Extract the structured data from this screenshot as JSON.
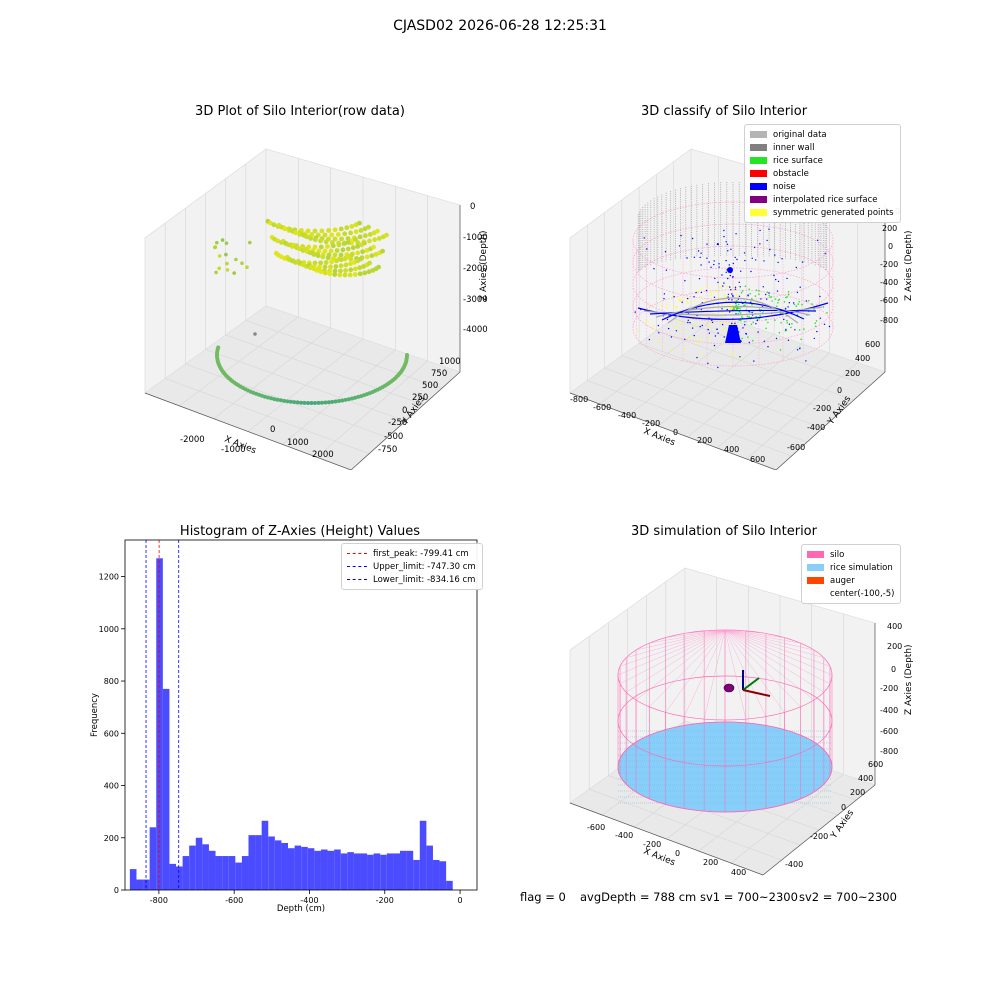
{
  "figure_title": "CJASD02 2026-06-28 12:25:31",
  "colors": {
    "raw_low": "#2a9d8f",
    "raw_high": "#e4e71a",
    "original_data": "#b4b4b4",
    "inner_wall": "#808080",
    "rice_surface": "#22e622",
    "obstacle": "#ff0000",
    "noise": "#0000ff",
    "interpolated_rice_surface": "#800080",
    "symmetric_generated_points": "#ffff33",
    "silo": "#ff69b4",
    "rice_simulation": "#87cefa",
    "auger": "#ff4500",
    "histogram_bar": "#4b4bff",
    "first_peak_line": "#ff0000",
    "limit_lines": "#0000ff"
  },
  "panels": {
    "raw": {
      "title": "3D Plot of Silo Interior(row data)",
      "xlabel": "X Axies",
      "ylabel": "Y Axies",
      "zlabel": "Z Axies (Depth)",
      "xticks": [
        "-2000",
        "-1000",
        "0",
        "1000",
        "2000"
      ],
      "yticks": [
        "-750",
        "-500",
        "-250",
        "0",
        "250",
        "500",
        "750",
        "1000"
      ],
      "zticks": [
        "0",
        "-1000",
        "-2000",
        "-3000",
        "-4000"
      ]
    },
    "classify": {
      "title": "3D classify of Silo Interior",
      "xlabel": "X Axies",
      "ylabel": "Y Axies",
      "zlabel": "Z Axies (Depth)",
      "xticks": [
        "-800",
        "-600",
        "-400",
        "-200",
        "0",
        "200",
        "400",
        "600"
      ],
      "yticks": [
        "-600",
        "-400",
        "-200",
        "0",
        "200",
        "400",
        "600"
      ],
      "zticks": [
        "200",
        "0",
        "-200",
        "-400",
        "-600",
        "-800"
      ],
      "zticks_top_partial": "0",
      "legend": [
        {
          "label": "original data",
          "color": "#b4b4b4"
        },
        {
          "label": "inner wall",
          "color": "#808080"
        },
        {
          "label": "rice surface",
          "color": "#22e622"
        },
        {
          "label": "obstacle",
          "color": "#ff0000"
        },
        {
          "label": "noise",
          "color": "#0000ff"
        },
        {
          "label": "interpolated rice surface",
          "color": "#800080"
        },
        {
          "label": "symmetric generated points",
          "color": "#ffff33"
        }
      ]
    },
    "simulation": {
      "title": "3D simulation of Silo Interior",
      "xlabel": "X Axies",
      "ylabel": "Y Axies",
      "zlabel": "Z Axies (Depth)",
      "xticks": [
        "-600",
        "-400",
        "-200",
        "0",
        "200",
        "400"
      ],
      "yticks": [
        "-400",
        "-200",
        "0",
        "200",
        "400",
        "600"
      ],
      "zticks": [
        "400",
        "200",
        "0",
        "-200",
        "-400",
        "-600",
        "-800"
      ],
      "legend": [
        {
          "label": "silo",
          "color": "#ff69b4"
        },
        {
          "label": "rice simulation",
          "color": "#87cefa"
        },
        {
          "label": "auger",
          "color": "#ff4500"
        },
        {
          "label": "center(-100,-5)",
          "color": ""
        }
      ]
    }
  },
  "footer": {
    "flag": "flag = 0",
    "avg_depth": "avgDepth = 788 cm",
    "sv1": "sv1 = 700~2300",
    "sv2": "sv2 = 700~2300"
  },
  "chart_data": [
    {
      "type": "scatter",
      "title": "3D Plot of Silo Interior(row data)",
      "xlabel": "X Axies",
      "ylabel": "Y Axies",
      "zlabel": "Z Axies (Depth)",
      "xlim": [
        -2600,
        2600
      ],
      "ylim": [
        -900,
        1100
      ],
      "zlim": [
        -4400,
        300
      ]
    },
    {
      "type": "scatter",
      "title": "3D classify of Silo Interior",
      "xlabel": "X Axies",
      "ylabel": "Y Axies",
      "zlabel": "Z Axies (Depth)",
      "series": [
        {
          "name": "original data"
        },
        {
          "name": "inner wall"
        },
        {
          "name": "rice surface"
        },
        {
          "name": "obstacle"
        },
        {
          "name": "noise"
        },
        {
          "name": "interpolated rice surface"
        },
        {
          "name": "symmetric generated points"
        }
      ]
    },
    {
      "type": "bar",
      "title": "Histogram of Z-Axies (Height) Values",
      "xlabel": "Depth (cm)",
      "ylabel": "Frequency",
      "xlim": [
        -890,
        45
      ],
      "ylim": [
        0,
        1340
      ],
      "xticks": [
        -800,
        -600,
        -400,
        -200,
        0
      ],
      "yticks": [
        0,
        200,
        400,
        600,
        800,
        1000,
        1200
      ],
      "bin_start": -877,
      "bin_width": 17.5,
      "values": [
        80,
        40,
        40,
        240,
        1270,
        770,
        100,
        90,
        130,
        170,
        200,
        175,
        150,
        130,
        130,
        130,
        105,
        130,
        210,
        210,
        265,
        205,
        190,
        180,
        160,
        170,
        165,
        160,
        150,
        155,
        150,
        155,
        140,
        145,
        140,
        140,
        135,
        140,
        135,
        140,
        140,
        150,
        150,
        115,
        265,
        170,
        115,
        110,
        35
      ],
      "vlines": [
        {
          "label": "first_peak: -799.41 cm",
          "x": -799.41,
          "color": "#ff0000"
        },
        {
          "label": "Upper_limit: -747.30 cm",
          "x": -747.3,
          "color": "#0000ff"
        },
        {
          "label": "Lower_limit: -834.16 cm",
          "x": -834.16,
          "color": "#0000ff"
        }
      ],
      "legend_position": "top-right"
    },
    {
      "type": "scatter",
      "title": "3D simulation of Silo Interior",
      "xlabel": "X Axies",
      "ylabel": "Y Axies",
      "zlabel": "Z Axies (Depth)",
      "series": [
        {
          "name": "silo"
        },
        {
          "name": "rice simulation"
        },
        {
          "name": "auger"
        },
        {
          "name": "center(-100,-5)"
        }
      ]
    }
  ]
}
